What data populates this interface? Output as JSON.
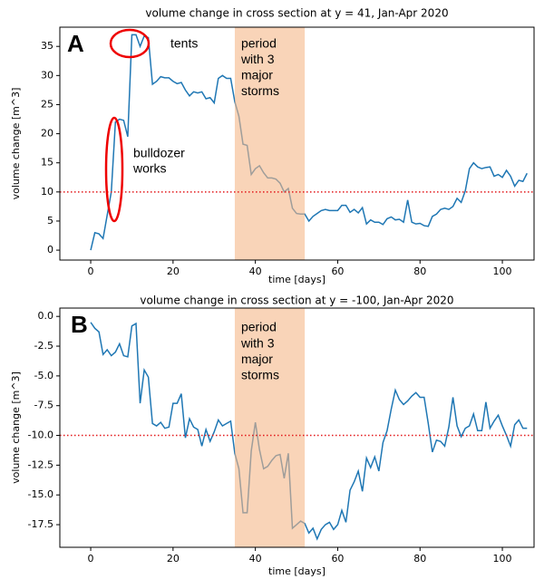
{
  "chart_data": [
    {
      "type": "line",
      "panel_label": "A",
      "title": "volume change in cross section at y = 41, Jan-Apr 2020",
      "x_label": "time [days]",
      "y_label": "volume change [m^3]",
      "xlim": [
        -7.5,
        107.7
      ],
      "xticks": [
        0,
        20,
        40,
        60,
        80,
        100
      ],
      "ylim": [
        -1.7,
        38.3
      ],
      "yticks": [
        0,
        5,
        10,
        15,
        20,
        25,
        30,
        35
      ],
      "x": [
        0,
        1,
        2,
        3,
        4,
        5,
        6,
        7,
        8,
        9,
        10,
        11,
        12,
        13,
        14,
        15,
        16,
        17,
        18,
        19,
        20,
        21,
        22,
        23,
        24,
        25,
        26,
        27,
        28,
        29,
        30,
        31,
        32,
        33,
        34,
        35,
        36,
        37,
        38,
        39,
        40,
        41,
        42,
        43,
        44,
        45,
        46,
        47,
        48,
        49,
        50,
        51,
        52,
        53,
        54,
        55,
        56,
        57,
        58,
        59,
        60,
        61,
        62,
        63,
        64,
        65,
        66,
        67,
        68,
        69,
        70,
        71,
        72,
        73,
        74,
        75,
        76,
        77,
        78,
        79,
        80,
        81,
        82,
        83,
        84,
        85,
        86,
        87,
        88,
        89,
        90,
        91,
        92,
        93,
        94,
        95,
        96,
        97,
        98,
        99,
        100,
        101,
        102,
        103,
        104,
        105,
        106
      ],
      "series": [
        {
          "color": "#1f77b4",
          "values": [
            0,
            3,
            2.8,
            2,
            6,
            10,
            22,
            22.5,
            22.3,
            19.5,
            37,
            37,
            35,
            36.8,
            36.5,
            28.5,
            29,
            29.8,
            29.6,
            29.6,
            29,
            28.6,
            28.8,
            27.5,
            26.5,
            27.2,
            27,
            27.2,
            26,
            26.2,
            25.3,
            29.5,
            30,
            29.5,
            29.5,
            25.5,
            23,
            18.2,
            18,
            13,
            14,
            14.5,
            13.3,
            12.4,
            12.4,
            12.2,
            11.5,
            10,
            10.6,
            7.2,
            6.3,
            6.2,
            6.2,
            5,
            5.8,
            6.3,
            6.8,
            7,
            6.8,
            6.8,
            6.8,
            7.7,
            7.7,
            6.5,
            7,
            6.4,
            7.3,
            4.5,
            5.2,
            4.8,
            4.8,
            4.4,
            5.4,
            5.7,
            5.2,
            5.3,
            4.8,
            8.6,
            4.8,
            4.5,
            4.6,
            4.2,
            4.1,
            5.8,
            6.2,
            7,
            7.2,
            7,
            7.5,
            8.9,
            8.2,
            10.2,
            14,
            15,
            14.3,
            14,
            14.2,
            14.3,
            12.7,
            13,
            12.5,
            13.7,
            12.7,
            11,
            12,
            11.8,
            13.2
          ]
        }
      ],
      "hline": 10,
      "hline_color": "#e31a1c",
      "span": [
        35,
        52
      ],
      "span_color": "#f5b889",
      "span_label": [
        "period",
        "with 3",
        "major",
        "storms"
      ],
      "annotations": [
        [
          "tents"
        ],
        [
          "bulldozer",
          "works"
        ]
      ]
    },
    {
      "type": "line",
      "panel_label": "B",
      "title": "volume change in cross section at y = -100, Jan-Apr 2020",
      "x_label": "time [days]",
      "y_label": "volume change [m^3]",
      "xlim": [
        -7.5,
        107.7
      ],
      "xticks": [
        0,
        20,
        40,
        60,
        80,
        100
      ],
      "ylim": [
        -19.4,
        0.7
      ],
      "yticks": [
        {
          "value": 0,
          "label": "0.0"
        },
        -2.5,
        {
          "value": -5,
          "label": "-5.0"
        },
        -7.5,
        {
          "value": -10,
          "label": "-10.0"
        },
        -12.5,
        {
          "value": -15,
          "label": "-15.0"
        },
        -17.5
      ],
      "x": [
        0,
        1,
        2,
        3,
        4,
        5,
        6,
        7,
        8,
        9,
        10,
        11,
        12,
        13,
        14,
        15,
        16,
        17,
        18,
        19,
        20,
        21,
        22,
        23,
        24,
        25,
        26,
        27,
        28,
        29,
        30,
        31,
        32,
        33,
        34,
        35,
        36,
        37,
        38,
        39,
        40,
        41,
        42,
        43,
        44,
        45,
        46,
        47,
        48,
        49,
        50,
        51,
        52,
        53,
        54,
        55,
        56,
        57,
        58,
        59,
        60,
        61,
        62,
        63,
        64,
        65,
        66,
        67,
        68,
        69,
        70,
        71,
        72,
        73,
        74,
        75,
        76,
        77,
        78,
        79,
        80,
        81,
        82,
        83,
        84,
        85,
        86,
        87,
        88,
        89,
        90,
        91,
        92,
        93,
        94,
        95,
        96,
        97,
        98,
        99,
        100,
        101,
        102,
        103,
        104,
        105,
        106
      ],
      "series": [
        {
          "color": "#1f77b4",
          "values": [
            -0.5,
            -1,
            -1.3,
            -3.2,
            -2.8,
            -3.3,
            -3,
            -2.3,
            -3.3,
            -3.4,
            -0.8,
            -0.6,
            -7.3,
            -4.5,
            -5.1,
            -9,
            -9.2,
            -8.9,
            -9.4,
            -9.3,
            -7.3,
            -7.3,
            -6.5,
            -10.2,
            -8.6,
            -9.3,
            -9.5,
            -10.9,
            -9.5,
            -10.5,
            -9.7,
            -8.7,
            -9.2,
            -9,
            -8.8,
            -11.5,
            -12.8,
            -16.5,
            -16.5,
            -11.3,
            -8.9,
            -11.2,
            -12.8,
            -12.6,
            -12.1,
            -11.7,
            -11.6,
            -13.6,
            -11.5,
            -17.8,
            -17.5,
            -17.2,
            -17.4,
            -18.2,
            -17.8,
            -18.7,
            -17.9,
            -17.5,
            -17.3,
            -17.9,
            -17.5,
            -16.3,
            -17.3,
            -14.6,
            -13.9,
            -13,
            -14.7,
            -11.9,
            -12.7,
            -11.8,
            -13,
            -10.6,
            -9.6,
            -7.8,
            -6.2,
            -7,
            -7.4,
            -7.1,
            -6.7,
            -6.4,
            -6.8,
            -6.8,
            -9,
            -11.4,
            -10.4,
            -10.5,
            -10.9,
            -9.3,
            -6.8,
            -9.2,
            -10.1,
            -9.4,
            -9.2,
            -8.2,
            -9.6,
            -9.6,
            -7.2,
            -9.4,
            -8.8,
            -8.3,
            -9.2,
            -10,
            -10.9,
            -9.1,
            -8.7,
            -9.4,
            -9.4
          ]
        }
      ],
      "hline": -10,
      "hline_color": "#e31a1c",
      "span": [
        35,
        52
      ],
      "span_color": "#f5b889",
      "span_label": [
        "period",
        "with 3",
        "major",
        "storms"
      ]
    }
  ]
}
